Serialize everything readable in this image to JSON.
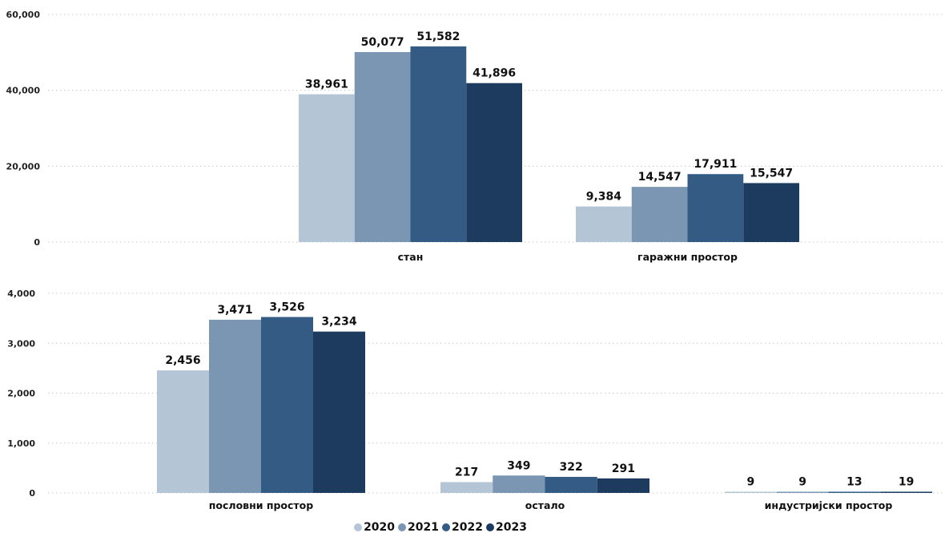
{
  "chart_data": [
    {
      "type": "bar",
      "categories": [
        "стан",
        "гаражни простор"
      ],
      "series": [
        {
          "name": "2020",
          "values": [
            38961,
            9384
          ]
        },
        {
          "name": "2021",
          "values": [
            50077,
            14547
          ]
        },
        {
          "name": "2022",
          "values": [
            51582,
            17911
          ]
        },
        {
          "name": "2023",
          "values": [
            41896,
            15547
          ]
        }
      ],
      "ylim": [
        0,
        60000
      ],
      "yticks": [
        "0",
        "20,000",
        "40,000",
        "60,000"
      ],
      "data_labels": [
        [
          "38,961",
          "9,384"
        ],
        [
          "50,077",
          "14,547"
        ],
        [
          "51,582",
          "17,911"
        ],
        [
          "41,896",
          "15,547"
        ]
      ],
      "grid": true
    },
    {
      "type": "bar",
      "categories": [
        "пословни простор",
        "остало",
        "индустријски простор"
      ],
      "series": [
        {
          "name": "2020",
          "values": [
            2456,
            217,
            9
          ]
        },
        {
          "name": "2021",
          "values": [
            3471,
            349,
            9
          ]
        },
        {
          "name": "2022",
          "values": [
            3526,
            322,
            13
          ]
        },
        {
          "name": "2023",
          "values": [
            3234,
            291,
            19
          ]
        }
      ],
      "ylim": [
        0,
        4000
      ],
      "yticks": [
        "0",
        "1,000",
        "2,000",
        "3,000",
        "4,000"
      ],
      "data_labels": [
        [
          "2,456",
          "217",
          "9"
        ],
        [
          "3,471",
          "349",
          "9"
        ],
        [
          "3,526",
          "322",
          "13"
        ],
        [
          "3,234",
          "291",
          "19"
        ]
      ],
      "grid": true
    }
  ],
  "legend": {
    "placement": "bottom-center",
    "items": [
      {
        "label": "2020",
        "color": "#b4c6d6"
      },
      {
        "label": "2021",
        "color": "#7a96b3"
      },
      {
        "label": "2022",
        "color": "#335b84"
      },
      {
        "label": "2023",
        "color": "#1d3a5f"
      }
    ]
  }
}
